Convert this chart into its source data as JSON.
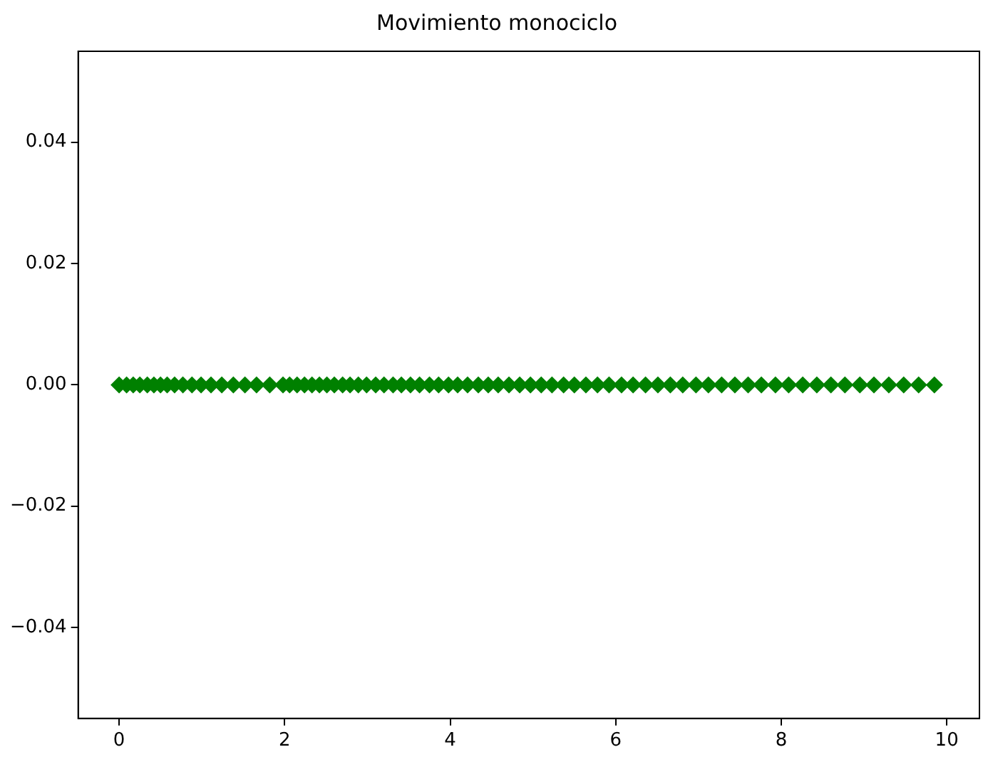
{
  "chart_data": {
    "type": "scatter",
    "title": "Movimiento monociclo",
    "x": [
      0,
      0.09,
      0.17,
      0.25,
      0.34,
      0.42,
      0.5,
      0.58,
      0.67,
      0.77,
      0.88,
      0.99,
      1.11,
      1.24,
      1.38,
      1.52,
      1.66,
      1.82,
      1.98,
      2.06,
      2.15,
      2.24,
      2.33,
      2.42,
      2.51,
      2.6,
      2.7,
      2.79,
      2.89,
      2.99,
      3.1,
      3.2,
      3.31,
      3.41,
      3.52,
      3.63,
      3.75,
      3.86,
      3.98,
      4.09,
      4.21,
      4.34,
      4.46,
      4.58,
      4.71,
      4.84,
      4.97,
      5.1,
      5.23,
      5.37,
      5.5,
      5.64,
      5.78,
      5.92,
      6.07,
      6.21,
      6.36,
      6.51,
      6.66,
      6.81,
      6.97,
      7.12,
      7.28,
      7.44,
      7.6,
      7.76,
      7.93,
      8.09,
      8.26,
      8.43,
      8.6,
      8.77,
      8.95,
      9.12,
      9.3,
      9.48,
      9.66,
      9.85
    ],
    "values": [
      0,
      0,
      0,
      0,
      0,
      0,
      0,
      0,
      0,
      0,
      0,
      0,
      0,
      0,
      0,
      0,
      0,
      0,
      0,
      0,
      0,
      0,
      0,
      0,
      0,
      0,
      0,
      0,
      0,
      0,
      0,
      0,
      0,
      0,
      0,
      0,
      0,
      0,
      0,
      0,
      0,
      0,
      0,
      0,
      0,
      0,
      0,
      0,
      0,
      0,
      0,
      0,
      0,
      0,
      0,
      0,
      0,
      0,
      0,
      0,
      0,
      0,
      0,
      0,
      0,
      0,
      0,
      0,
      0,
      0,
      0,
      0,
      0,
      0,
      0,
      0,
      0,
      0
    ],
    "color": "#008000",
    "marker": "diamond",
    "grid": false,
    "legend": false,
    "xlim": [
      -0.495,
      10.395
    ],
    "xticks": [
      0,
      2,
      4,
      6,
      8,
      10
    ],
    "ylim": [
      -0.055,
      0.055
    ],
    "yticks": [
      {
        "value": -0.04,
        "label": "−0.04"
      },
      {
        "value": -0.02,
        "label": "−0.02"
      },
      {
        "value": 0,
        "label": "0.00"
      },
      {
        "value": 0.02,
        "label": "0.02"
      },
      {
        "value": 0.04,
        "label": "0.04"
      }
    ]
  }
}
